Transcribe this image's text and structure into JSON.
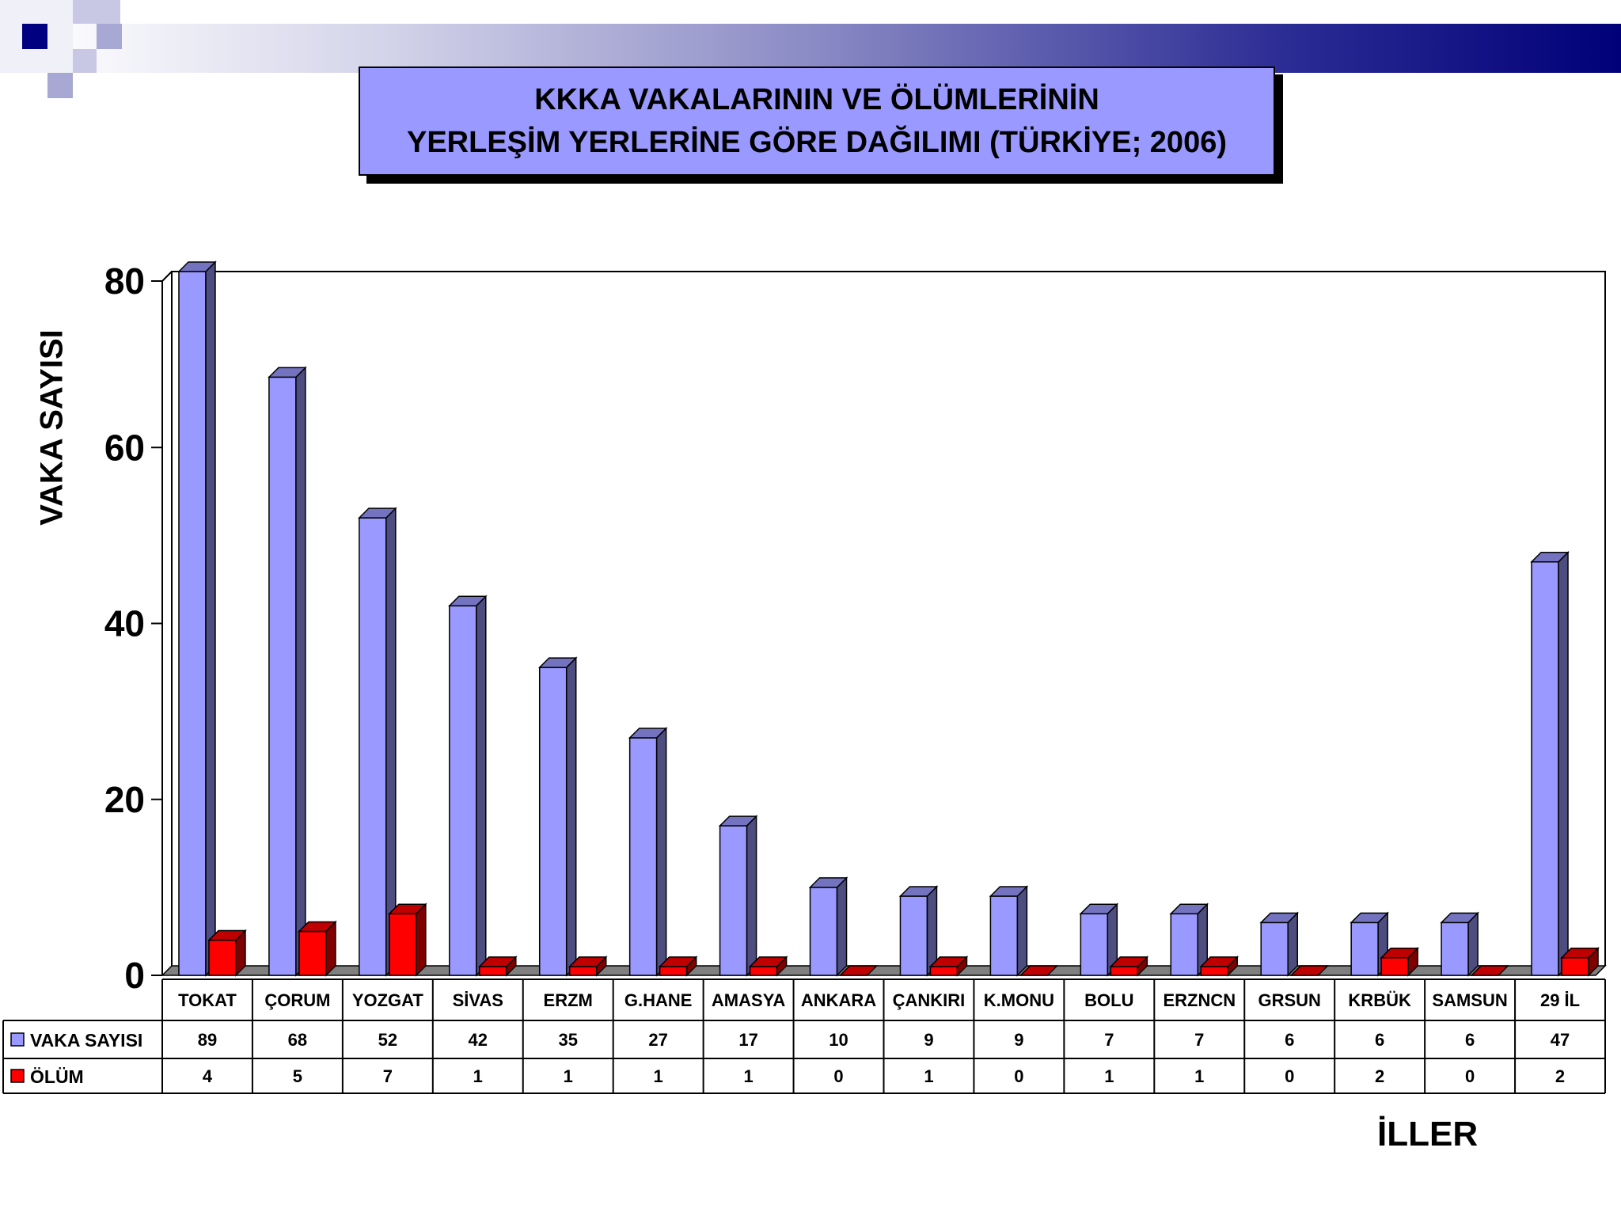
{
  "title": {
    "line1": "KKKA VAKALARININ VE ÖLÜMLERİNİN",
    "line2": "YERLEŞİM YERLERİNE GÖRE DAĞILIMI (TÜRKİYE; 2006)"
  },
  "colors": {
    "vaka": "#9999ff",
    "olum": "#ff0000",
    "title_box": "#9999ff",
    "band_dark": "#000080"
  },
  "chart_data": {
    "type": "bar",
    "ylabel": "VAKA SAYISI",
    "xlabel": "İLLER",
    "ylim": [
      0,
      80
    ],
    "yticks": [
      0,
      20,
      40,
      60,
      80
    ],
    "grid": false,
    "legend": "table-left",
    "categories": [
      "TOKAT",
      "ÇORUM",
      "YOZGAT",
      "SİVAS",
      "ERZM",
      "G.HANE",
      "AMASYA",
      "ANKARA",
      "ÇANKIRI",
      "K.MONU",
      "BOLU",
      "ERZNCN",
      "GRSUN",
      "KRBÜK",
      "SAMSUN",
      "29  İL"
    ],
    "series": [
      {
        "name": "VAKA SAYISI",
        "values": [
          89,
          68,
          52,
          42,
          35,
          27,
          17,
          10,
          9,
          9,
          7,
          7,
          6,
          6,
          6,
          47
        ]
      },
      {
        "name": "ÖLÜM",
        "values": [
          4,
          5,
          7,
          1,
          1,
          1,
          1,
          0,
          1,
          0,
          1,
          1,
          0,
          2,
          0,
          2
        ]
      }
    ]
  }
}
